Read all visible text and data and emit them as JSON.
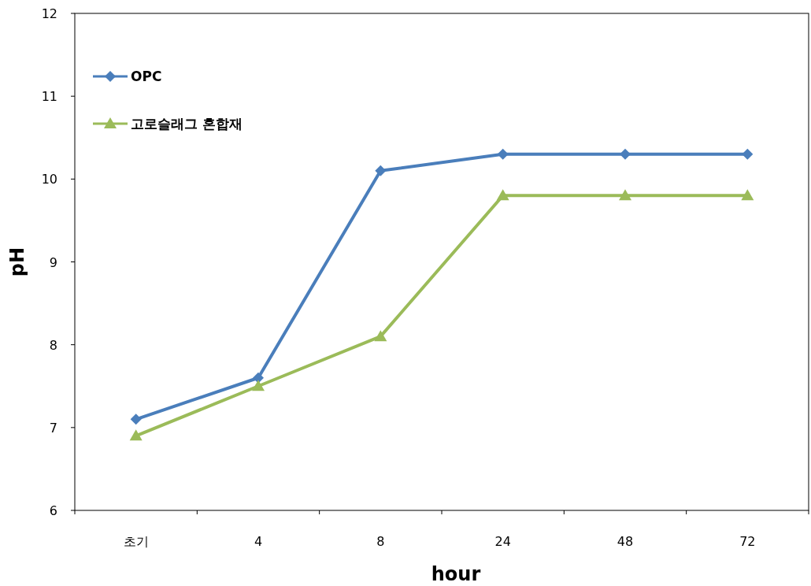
{
  "chart_data": {
    "type": "line",
    "xlabel": "hour",
    "ylabel": "pH",
    "categories": [
      "초기",
      "4",
      "8",
      "24",
      "48",
      "72"
    ],
    "ylim": [
      6,
      12
    ],
    "yticks": [
      6,
      7,
      8,
      9,
      10,
      11,
      12
    ],
    "legend": "top left",
    "series": [
      {
        "name": "OPC",
        "color": "#4a7ebb",
        "marker": "diamond",
        "values": [
          7.1,
          7.6,
          10.1,
          10.3,
          10.3,
          10.3
        ]
      },
      {
        "name": "고로슬래그 혼합재",
        "color": "#9bbb59",
        "marker": "triangle",
        "values": [
          6.9,
          7.5,
          8.1,
          9.8,
          9.8,
          9.8
        ]
      }
    ]
  }
}
